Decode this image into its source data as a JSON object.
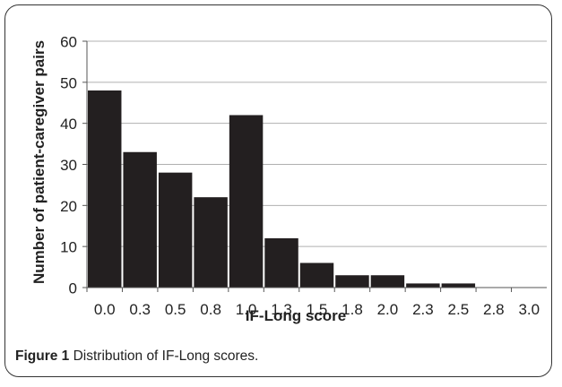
{
  "chart_data": {
    "type": "bar",
    "categories": [
      "0.0",
      "0.3",
      "0.5",
      "0.8",
      "1.0",
      "1.3",
      "1.5",
      "1.8",
      "2.0",
      "2.3",
      "2.5",
      "2.8",
      "3.0"
    ],
    "values": [
      48,
      33,
      28,
      22,
      42,
      12,
      6,
      3,
      3,
      1,
      1,
      0,
      0
    ],
    "xlabel": "IF-Long score",
    "ylabel": "Number of patient-caregiver pairs",
    "ylim": [
      0,
      60
    ],
    "yticks": [
      0,
      10,
      20,
      30,
      40,
      50,
      60
    ],
    "grid": true,
    "bar_color": "#231f20",
    "grid_color": "#b0b0b0"
  },
  "caption": {
    "label": "Figure 1",
    "text": " Distribution of IF-Long scores."
  }
}
